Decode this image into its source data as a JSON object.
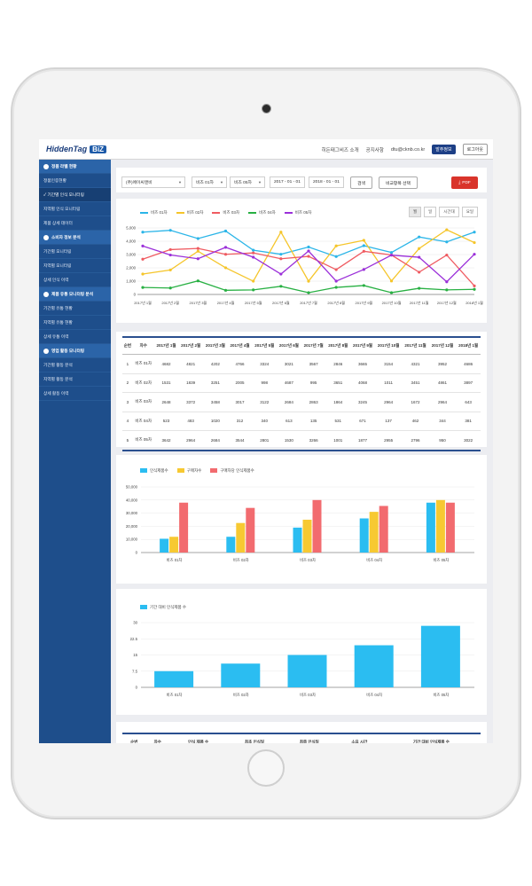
{
  "app": {
    "logo_text": "HiddenTag",
    "logo_badge": "BiZ",
    "top_links": [
      "히든태그비즈 소개",
      "공지사항",
      "dtu@cknb.co.kr"
    ],
    "btn_order": "발주정보",
    "btn_logout": "로그아웃"
  },
  "sidebar": {
    "items": [
      {
        "label": "정품 라벨 현황",
        "type": "head"
      },
      {
        "label": "정품인증현황",
        "type": "item"
      },
      {
        "label": "✓ 기간별 인식 모니터링",
        "type": "active"
      },
      {
        "label": "지역별 인식 모니터링",
        "type": "item"
      },
      {
        "label": "제품 상세 데이터",
        "type": "item"
      },
      {
        "label": "소비자 정보 분석",
        "type": "head"
      },
      {
        "label": "기간별 모니터링",
        "type": "item"
      },
      {
        "label": "지역별 모니터링",
        "type": "item"
      },
      {
        "label": "상세 인식 이력",
        "type": "item"
      },
      {
        "label": "제품 유통 모니터링 분석",
        "type": "head"
      },
      {
        "label": "기간별 유통 현황",
        "type": "item"
      },
      {
        "label": "지역별 유통 현황",
        "type": "item"
      },
      {
        "label": "상세 유통 이력",
        "type": "item"
      },
      {
        "label": "영업 활동 모니터링",
        "type": "head"
      },
      {
        "label": "기간별 활동 분석",
        "type": "item"
      },
      {
        "label": "지역별 활동 분석",
        "type": "item"
      },
      {
        "label": "상세 활동 이력",
        "type": "item"
      }
    ]
  },
  "filters": {
    "company": "(주)에이씨앤비",
    "from_item": "비즈 01차",
    "to_item": "비즈 05차",
    "start_date": "2017 - 01 - 01",
    "end_date": "2018 - 01 - 01",
    "search_btn": "검색",
    "compare_btn": "비교항목 선택",
    "pdf_btn": "PDF"
  },
  "line_chart": {
    "tabs": [
      "월",
      "일",
      "시간대",
      "요일"
    ],
    "colors": [
      "#2bb5e8",
      "#f5c52a",
      "#ef5b61",
      "#28b043",
      "#9b30d9"
    ],
    "series_names": [
      "비즈 01차",
      "비즈 02차",
      "비즈 03차",
      "비즈 04차",
      "비즈 05차"
    ]
  },
  "chart_data": [
    {
      "type": "line",
      "x": [
        "2017년 1월",
        "2017년 2월",
        "2017년 3월",
        "2017년 4월",
        "2017년 5월",
        "2017년 6월",
        "2017년 7월",
        "2017년 8월",
        "2017년 9월",
        "2017년 10월",
        "2017년 11월",
        "2017년 12월",
        "2018년 1월"
      ],
      "ylim": [
        0,
        5000
      ],
      "yticks": [
        "0",
        "1,000",
        "2,000",
        "3,000",
        "4,000",
        "5,000"
      ],
      "series": [
        {
          "name": "비즈 01차",
          "values": [
            4682,
            4821,
            4202,
            4766,
            3324,
            3021,
            3567,
            2846,
            3665,
            3154,
            4321,
            3952,
            4686
          ]
        },
        {
          "name": "비즈 02차",
          "values": [
            1531,
            1839,
            3251,
            2005,
            998,
            4687,
            995,
            3651,
            4068,
            1011,
            3451,
            4861,
            3897
          ]
        },
        {
          "name": "비즈 03차",
          "values": [
            2648,
            3372,
            3458,
            3017,
            3122,
            2684,
            2863,
            1864,
            3245,
            2964,
            1672,
            2964,
            643
          ]
        },
        {
          "name": "비즈 04차",
          "values": [
            523,
            483,
            1020,
            312,
            340,
            613,
            135,
            531,
            671,
            137,
            462,
            344,
            381
          ]
        },
        {
          "name": "비즈 05차",
          "values": [
            3642,
            2964,
            2684,
            3544,
            2801,
            1530,
            3266,
            1001,
            1877,
            2955,
            2796,
            950,
            3022
          ]
        }
      ]
    },
    {
      "type": "bar",
      "categories": [
        "비즈 01차",
        "비즈 02차",
        "비즈 03차",
        "비즈 04차",
        "비즈 05차"
      ],
      "ylim": [
        0,
        50000
      ],
      "yticks": [
        "0",
        "10,000",
        "20,000",
        "30,000",
        "40,000",
        "50,000"
      ],
      "colors": [
        "#2bbdf1",
        "#f7c932",
        "#f26b6f"
      ],
      "series": [
        {
          "name": "인식제품수",
          "values": [
            10500,
            12000,
            19000,
            26000,
            38000
          ]
        },
        {
          "name": "구매자수",
          "values": [
            12000,
            22500,
            25000,
            31000,
            40000
          ]
        },
        {
          "name": "구매자당 인식제품수",
          "values": [
            38000,
            34000,
            40000,
            35500,
            38000
          ]
        }
      ]
    },
    {
      "type": "bar",
      "categories": [
        "비즈 01차",
        "비즈 02차",
        "비즈 03차",
        "비즈 04차",
        "비즈 05차"
      ],
      "ylim": [
        0,
        30
      ],
      "yticks": [
        "0",
        "7.5",
        "15",
        "22.5",
        "30"
      ],
      "colors": [
        "#2bbdf1"
      ],
      "series": [
        {
          "name": "기간 대비 인식제품 수",
          "values": [
            7.5,
            11,
            15,
            19.5,
            28.5
          ]
        }
      ]
    }
  ],
  "table1": {
    "headers": [
      "순번",
      "차수",
      "2017년 1월",
      "2017년 2월",
      "2017년 3월",
      "2017년 4월",
      "2017년 5월",
      "2017년 6월",
      "2017년 7월",
      "2017년 8월",
      "2017년 9월",
      "2017년 10월",
      "2017년 11월",
      "2017년 12월",
      "2018년 1월"
    ],
    "rows": [
      [
        "1",
        "비즈 01차",
        "4682",
        "4821",
        "4202",
        "4766",
        "3324",
        "3021",
        "3567",
        "2846",
        "3665",
        "3154",
        "4321",
        "3952",
        "4686"
      ],
      [
        "2",
        "비즈 02차",
        "1531",
        "1839",
        "3251",
        "2005",
        "998",
        "4687",
        "995",
        "3651",
        "4068",
        "1011",
        "3451",
        "4861",
        "3897"
      ],
      [
        "3",
        "비즈 03차",
        "2648",
        "3372",
        "3458",
        "3017",
        "3122",
        "2684",
        "2863",
        "1864",
        "3245",
        "2964",
        "1672",
        "2964",
        "643"
      ],
      [
        "4",
        "비즈 04차",
        "523",
        "483",
        "1020",
        "312",
        "340",
        "613",
        "135",
        "531",
        "671",
        "137",
        "462",
        "344",
        "381"
      ],
      [
        "5",
        "비즈 05차",
        "3642",
        "2964",
        "2684",
        "3544",
        "2801",
        "1530",
        "3266",
        "1001",
        "1877",
        "2955",
        "2796",
        "950",
        "3022"
      ]
    ]
  },
  "table2": {
    "headers": [
      "순번",
      "차수",
      "인식 제품 수",
      "최초 인식일",
      "최종 인식일",
      "소요 시간",
      "기간 대비 인식제품 수"
    ]
  }
}
